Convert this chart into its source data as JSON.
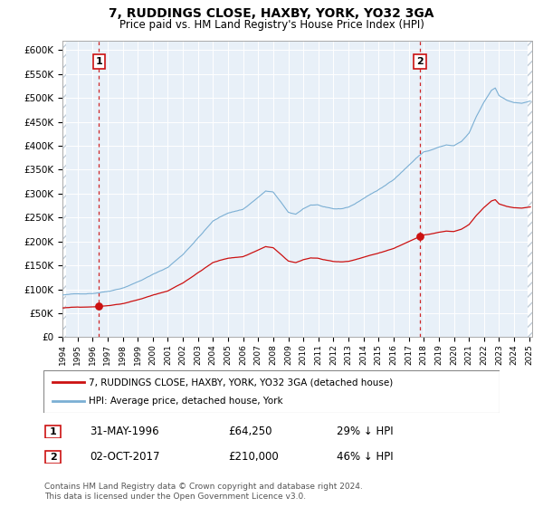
{
  "title": "7, RUDDINGS CLOSE, HAXBY, YORK, YO32 3GA",
  "subtitle": "Price paid vs. HM Land Registry's House Price Index (HPI)",
  "hpi_color": "#7bafd4",
  "price_color": "#cc1111",
  "bg_color": "#e8f0f8",
  "ylim": [
    0,
    620000
  ],
  "yticks": [
    0,
    50000,
    100000,
    150000,
    200000,
    250000,
    300000,
    350000,
    400000,
    450000,
    500000,
    550000,
    600000
  ],
  "ytick_labels": [
    "£0",
    "£50K",
    "£100K",
    "£150K",
    "£200K",
    "£250K",
    "£300K",
    "£350K",
    "£400K",
    "£450K",
    "£500K",
    "£550K",
    "£600K"
  ],
  "sale1_year": 1996.416,
  "sale1_price": 64250,
  "sale2_year": 2017.75,
  "sale2_price": 210000,
  "legend_line1": "7, RUDDINGS CLOSE, HAXBY, YORK, YO32 3GA (detached house)",
  "legend_line2": "HPI: Average price, detached house, York",
  "footnote": "Contains HM Land Registry data © Crown copyright and database right 2024.\nThis data is licensed under the Open Government Licence v3.0.",
  "xlim_start": 1994.0,
  "xlim_end": 2025.2
}
